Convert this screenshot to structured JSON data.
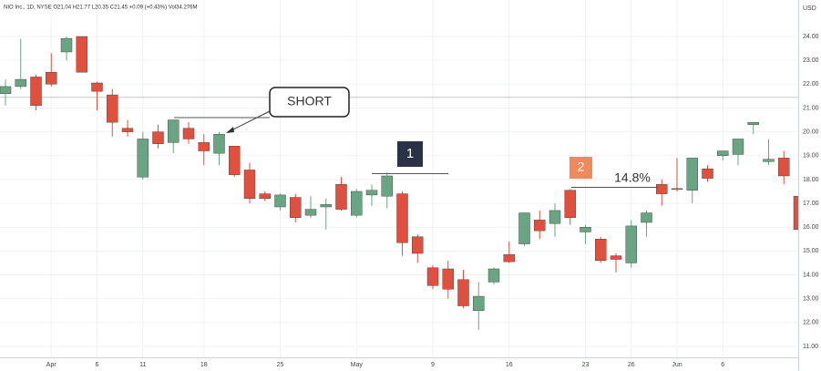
{
  "chart_data": {
    "type": "candlestick",
    "header": "NIO Inc., 1D, NYSE  O21.04  H21.77  L20.35  C21.45  +0.09 (+0.43%)  Vol34.276M",
    "currency": "USD",
    "categories": [
      null,
      null,
      null,
      "Apr",
      null,
      null,
      "6",
      null,
      null,
      "11",
      null,
      null,
      null,
      "18",
      null,
      null,
      null,
      null,
      "25",
      null,
      null,
      null,
      null,
      "May",
      null,
      null,
      null,
      null,
      "9",
      null,
      null,
      null,
      null,
      "16",
      null,
      null,
      null,
      null,
      "23",
      null,
      null,
      "26",
      null,
      null,
      "Jun",
      null,
      null,
      "6",
      null,
      null,
      null,
      null,
      null
    ],
    "open": [
      21.6,
      21.9,
      22.3,
      22.5,
      23.35,
      24.0,
      22.05,
      21.55,
      20.15,
      18.1,
      20.0,
      19.55,
      20.15,
      19.55,
      19.1,
      19.4,
      18.4,
      17.4,
      16.85,
      17.25,
      16.5,
      16.85,
      17.8,
      16.5,
      17.35,
      17.3,
      17.4,
      15.6,
      14.3,
      14.25,
      13.8,
      12.5,
      13.7,
      14.85,
      15.3,
      16.3,
      16.15,
      17.55,
      15.8,
      15.5,
      14.8,
      14.5,
      16.2,
      17.8,
      17.62,
      17.55,
      18.45,
      19.0,
      19.05,
      20.3,
      18.75,
      18.9,
      17.3
    ],
    "high": [
      22.2,
      23.9,
      22.4,
      23.3,
      24.0,
      24.0,
      22.1,
      21.8,
      20.5,
      20.0,
      20.3,
      20.5,
      20.4,
      19.9,
      20.0,
      19.4,
      18.7,
      17.5,
      17.4,
      17.4,
      17.3,
      17.2,
      18.1,
      17.6,
      17.8,
      18.3,
      17.5,
      15.7,
      14.4,
      14.6,
      14.2,
      13.7,
      14.3,
      15.4,
      16.6,
      16.7,
      17.0,
      17.6,
      16.1,
      15.6,
      14.9,
      16.3,
      16.7,
      18.0,
      18.9,
      18.9,
      18.6,
      19.2,
      19.7,
      20.4,
      19.7,
      19.2,
      17.4
    ],
    "low": [
      21.1,
      21.8,
      20.9,
      21.9,
      23.0,
      22.5,
      20.9,
      19.8,
      19.8,
      18.0,
      19.3,
      19.1,
      19.5,
      18.6,
      18.6,
      18.1,
      17.0,
      17.1,
      16.7,
      16.2,
      16.4,
      15.9,
      16.7,
      16.4,
      16.9,
      16.8,
      14.8,
      14.5,
      13.4,
      13.0,
      12.6,
      11.7,
      13.6,
      14.5,
      15.2,
      15.5,
      15.6,
      16.1,
      15.3,
      14.5,
      14.1,
      14.3,
      15.6,
      16.9,
      17.5,
      17.0,
      17.9,
      18.8,
      18.6,
      19.9,
      18.6,
      17.8,
      15.6
    ],
    "close": [
      21.9,
      22.2,
      21.1,
      22.0,
      23.92,
      22.5,
      21.7,
      20.4,
      20.0,
      19.7,
      19.5,
      20.5,
      19.7,
      19.2,
      19.9,
      18.2,
      17.2,
      17.2,
      17.35,
      16.4,
      16.75,
      16.95,
      16.75,
      17.5,
      17.55,
      18.15,
      15.35,
      14.9,
      13.55,
      13.4,
      12.7,
      13.1,
      14.25,
      14.55,
      16.6,
      15.85,
      16.7,
      16.4,
      16.0,
      14.6,
      14.65,
      16.05,
      16.6,
      17.4,
      17.58,
      18.9,
      18.05,
      19.2,
      19.7,
      20.4,
      18.85,
      18.15,
      15.9
    ],
    "up_color": "#6aa583",
    "down_color": "#e0503e",
    "price_line": 21.45,
    "ylim": [
      10.54,
      25.53
    ],
    "yticks": [
      {
        "value": 11,
        "label": "11.00"
      },
      {
        "value": 12,
        "label": "12.00"
      },
      {
        "value": 13,
        "label": "13.00"
      },
      {
        "value": 14,
        "label": "14.00"
      },
      {
        "value": 15,
        "label": "15.00"
      },
      {
        "value": 16,
        "label": "16.00"
      },
      {
        "value": 17,
        "label": "17.00"
      },
      {
        "value": 18,
        "label": "18.00"
      },
      {
        "value": 19,
        "label": "19.00"
      },
      {
        "value": 20,
        "label": "20.00"
      },
      {
        "value": 21,
        "label": "21.00"
      },
      {
        "value": 22,
        "label": "22.00"
      },
      {
        "value": 23,
        "label": "23.00"
      },
      {
        "value": 24,
        "label": "24.00"
      }
    ],
    "grid": true,
    "annotations": [
      "SHORT",
      "1",
      "2",
      "14.8%"
    ]
  }
}
